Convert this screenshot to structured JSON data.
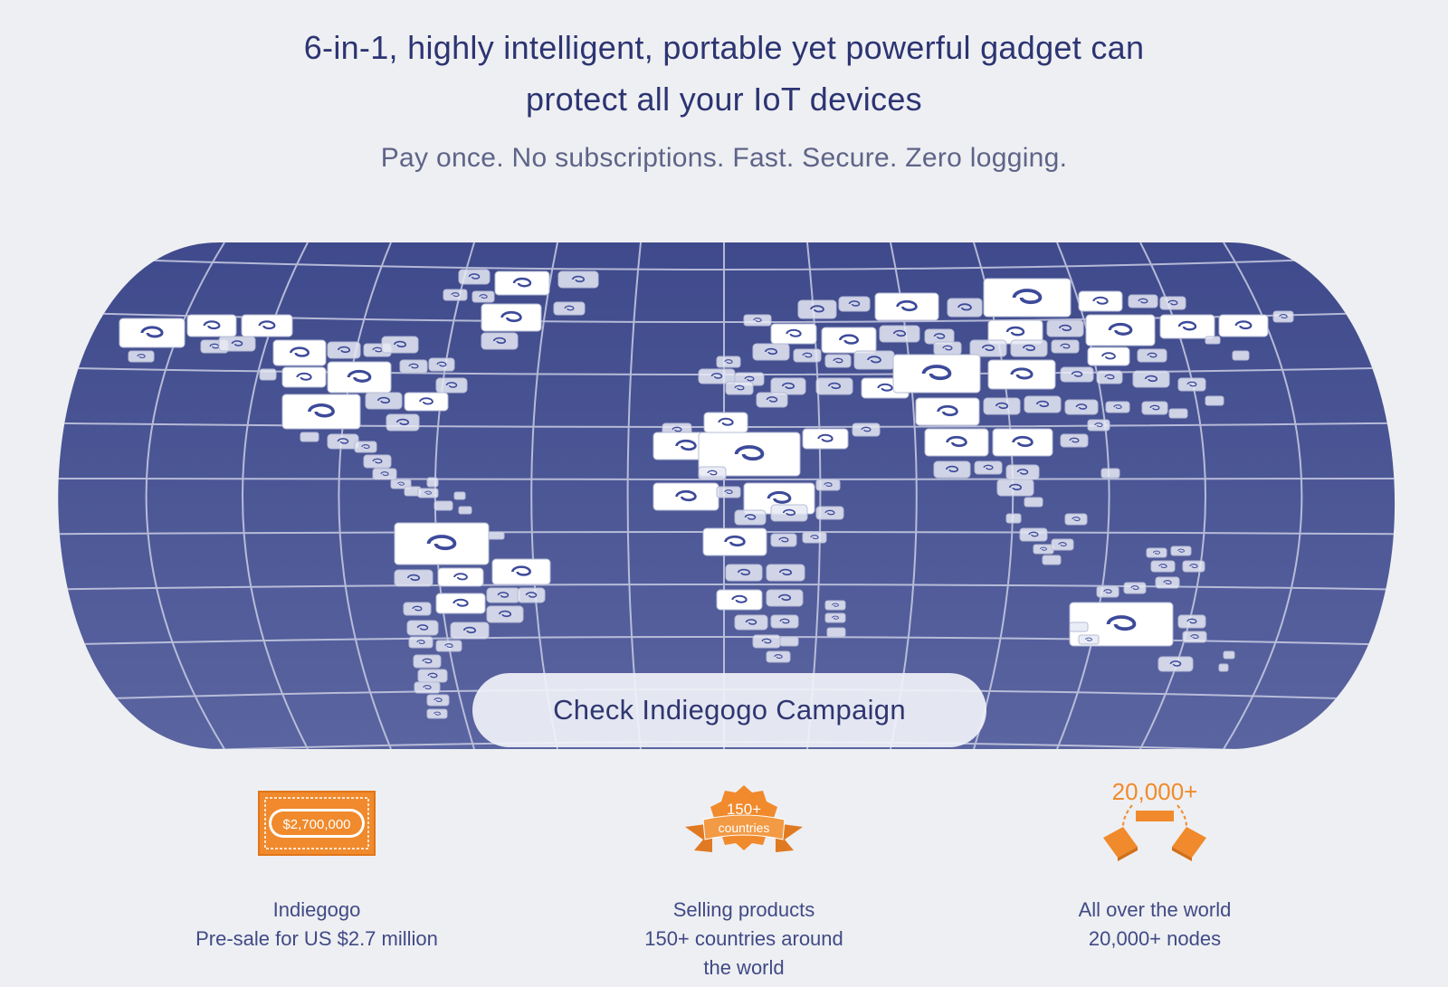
{
  "headline": {
    "line1": "6-in-1, highly intelligent, portable yet powerful gadget can",
    "line2": "protect all your IoT devices"
  },
  "subheadline": "Pay once. No subscriptions. Fast. Secure. Zero logging.",
  "map": {
    "background_color": "#4a5494",
    "grid_color": "#c9cde4",
    "tile_color": "#ffffff",
    "tile_logo": "swirl-logo-icon"
  },
  "cta": {
    "label": "Check Indiegogo Campaign"
  },
  "accent_color": "#f08a2c",
  "stats": [
    {
      "icon": "banknote-icon",
      "badge": "$2,700,000",
      "line1": "Indiegogo",
      "line2": "Pre-sale for US $2.7 million"
    },
    {
      "icon": "ribbon-badge-icon",
      "badge_top": "150+",
      "badge_bottom": "countries",
      "line1": "Selling products",
      "line2": "150+ countries around",
      "line3": "the world"
    },
    {
      "icon": "nodes-network-icon",
      "badge": "20,000+",
      "line1": "All over the world",
      "line2": "20,000+ nodes"
    }
  ]
}
